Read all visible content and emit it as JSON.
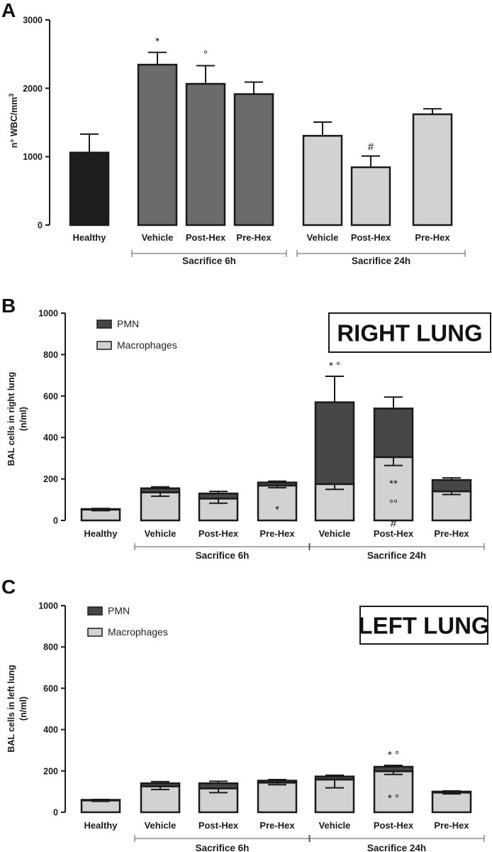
{
  "colors": {
    "healthy": "#1e1e1e",
    "sacrifice_6h": "#6b6b6b",
    "sacrifice_24h": "#d2d2d2",
    "pmn": "#464646",
    "macrophages": "#d2d2d2",
    "axis": "#1a1a1a"
  },
  "chart_data": [
    {
      "panel": "A",
      "type": "bar",
      "ylabel_main": "n° WBC/mm",
      "ylabel_sup": "3",
      "ylim": [
        0,
        3000
      ],
      "yticks": [
        "0",
        "1000",
        "2000",
        "3000"
      ],
      "categories": [
        "Healthy",
        "Vehicle",
        "Post-Hex",
        "Pre-Hex",
        "Vehicle",
        "Post-Hex",
        "Pre-Hex"
      ],
      "values": [
        1060,
        2345,
        2065,
        1915,
        1305,
        845,
        1620
      ],
      "errors": [
        270,
        180,
        265,
        175,
        200,
        165,
        80
      ],
      "annotations": [
        "",
        "*",
        "°",
        "",
        "",
        "#",
        ""
      ],
      "groups": [
        {
          "label": "Sacrifice 6h",
          "from": 1,
          "to": 3
        },
        {
          "label": "Sacrifice 24h",
          "from": 4,
          "to": 6
        }
      ]
    },
    {
      "panel": "B",
      "type": "stacked_bar",
      "title_box": "RIGHT LUNG",
      "ylabel_line1": "BAL cells in right lung",
      "ylabel_line2": "(n/ml)",
      "ylim": [
        0,
        1000
      ],
      "yticks": [
        "0",
        "200",
        "400",
        "600",
        "800",
        "1000"
      ],
      "categories": [
        "Healthy",
        "Vehicle",
        "Post-Hex",
        "Pre-Hex",
        "Vehicle",
        "Post-Hex",
        "Pre-Hex"
      ],
      "legend": [
        "PMN",
        "Macrophages"
      ],
      "series": [
        {
          "name": "Macrophages",
          "values": [
            52,
            135,
            105,
            168,
            175,
            305,
            140
          ],
          "errors": [
            5,
            18,
            22,
            10,
            25,
            40,
            15
          ]
        },
        {
          "name": "PMN",
          "values": [
            3,
            20,
            25,
            15,
            395,
            235,
            55
          ],
          "errors": [
            3,
            7,
            10,
            6,
            125,
            55,
            10
          ]
        }
      ],
      "annotations_above": [
        "",
        "",
        "",
        "",
        "* °",
        "",
        ""
      ],
      "annotations_inside": [
        [],
        [],
        [],
        [
          "*"
        ],
        [],
        [
          "**",
          "°°",
          "#"
        ],
        []
      ],
      "groups": [
        {
          "label": "Sacrifice 6h",
          "from": 1,
          "to": 3
        },
        {
          "label": "Sacrifice 24h",
          "from": 4,
          "to": 6
        }
      ]
    },
    {
      "panel": "C",
      "type": "stacked_bar",
      "title_box": "LEFT LUNG",
      "ylabel_line1": "BAL cells in left lung",
      "ylabel_line2": "(n/ml)",
      "ylim": [
        0,
        1000
      ],
      "yticks": [
        "0",
        "200",
        "400",
        "600",
        "800",
        "1000"
      ],
      "categories": [
        "Healthy",
        "Vehicle",
        "Post-Hex",
        "Pre-Hex",
        "Vehicle",
        "Post-Hex",
        "Pre-Hex"
      ],
      "legend": [
        "PMN",
        "Macrophages"
      ],
      "series": [
        {
          "name": "Macrophages",
          "values": [
            57,
            125,
            115,
            143,
            158,
            198,
            95
          ],
          "errors": [
            4,
            15,
            20,
            10,
            40,
            15,
            6
          ]
        },
        {
          "name": "PMN",
          "values": [
            3,
            15,
            25,
            10,
            15,
            22,
            5
          ],
          "errors": [
            2,
            8,
            10,
            5,
            6,
            7,
            3
          ]
        }
      ],
      "annotations_above": [
        "",
        "",
        "",
        "",
        "",
        "* °",
        ""
      ],
      "annotations_inside": [
        [],
        [],
        [],
        [],
        [],
        [
          "* °"
        ],
        []
      ],
      "groups": [
        {
          "label": "Sacrifice 6h",
          "from": 1,
          "to": 3
        },
        {
          "label": "Sacrifice 24h",
          "from": 4,
          "to": 6
        }
      ]
    }
  ]
}
